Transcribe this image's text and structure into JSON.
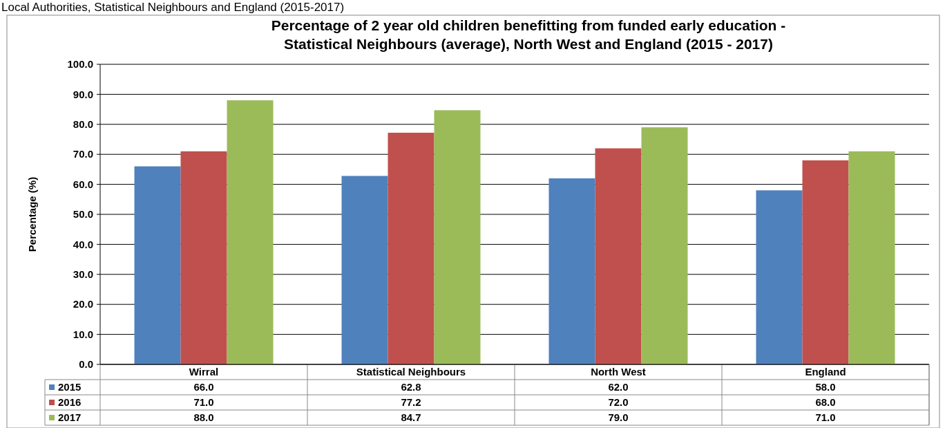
{
  "chart_data": {
    "type": "bar",
    "title": "Percentage of 2 year old children benefitting from funded early education -\nStatistical Neighbours (average), North West and England (2015 - 2017)",
    "annotations": [
      "Local Authorities, Statistical Neighbours and England (2015-2017)"
    ],
    "ylabel": "Percentage (%)",
    "categories": [
      "Wirral",
      "Statistical Neighbours",
      "North West",
      "England"
    ],
    "series": [
      {
        "name": "2015",
        "color": "#4f81bd",
        "values": [
          66.0,
          62.8,
          62.0,
          58.0
        ],
        "value_labels": [
          "66.0",
          "62.8",
          "62.0",
          "58.0"
        ]
      },
      {
        "name": "2016",
        "color": "#c0504d",
        "values": [
          71.0,
          77.2,
          72.0,
          68.0
        ],
        "value_labels": [
          "71.0",
          "77.2",
          "72.0",
          "68.0"
        ]
      },
      {
        "name": "2017",
        "color": "#9bbb59",
        "values": [
          88.0,
          84.7,
          79.0,
          71.0
        ],
        "value_labels": [
          "88.0",
          "84.7",
          "79.0",
          "71.0"
        ]
      }
    ],
    "ylim": [
      0,
      100
    ],
    "yticks": [
      {
        "value": 0,
        "label": "0.0"
      },
      {
        "value": 10,
        "label": "10.0"
      },
      {
        "value": 20,
        "label": "20.0"
      },
      {
        "value": 30,
        "label": "30.0"
      },
      {
        "value": 40,
        "label": "40.0"
      },
      {
        "value": 50,
        "label": "50.0"
      },
      {
        "value": 60,
        "label": "60.0"
      },
      {
        "value": 70,
        "label": "70.0"
      },
      {
        "value": 80,
        "label": "80.0"
      },
      {
        "value": 90,
        "label": "90.0"
      },
      {
        "value": 100,
        "label": "100.0"
      }
    ],
    "grid": "y",
    "legend": "bottom"
  }
}
